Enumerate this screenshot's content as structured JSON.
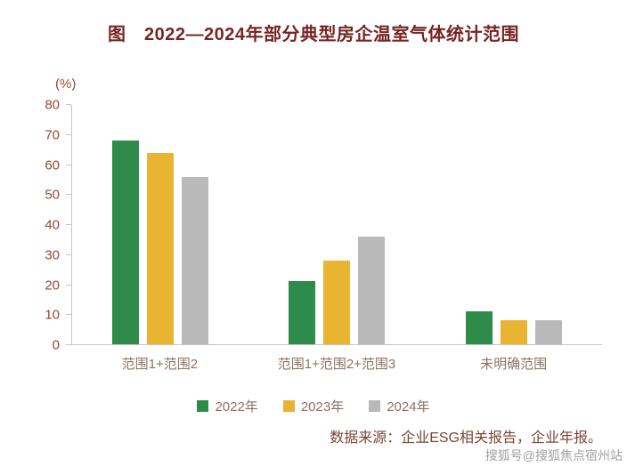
{
  "title": "图　2022—2024年部分典型房企温室气体统计范围",
  "chart_data": {
    "type": "bar",
    "title": "图　2022—2024年部分典型房企温室气体统计范围",
    "ylabel": "(%)",
    "ylim": [
      0,
      80
    ],
    "yticks": [
      0,
      10,
      20,
      30,
      40,
      50,
      60,
      70,
      80
    ],
    "grid": false,
    "legend_position": "bottom",
    "categories": [
      "范围1+范围2",
      "范围1+范围2+范围3",
      "未明确范围"
    ],
    "series": [
      {
        "name": "2022年",
        "color": "#2e8b4a",
        "values": [
          68,
          21,
          11
        ]
      },
      {
        "name": "2023年",
        "color": "#e8b431",
        "values": [
          64,
          28,
          8
        ]
      },
      {
        "name": "2024年",
        "color": "#b9b9b9",
        "values": [
          56,
          36,
          8
        ]
      }
    ]
  },
  "source_note": "数据来源：企业ESG相关报告，企业年报。",
  "watermark": "搜狐号@搜狐焦点宿州站"
}
